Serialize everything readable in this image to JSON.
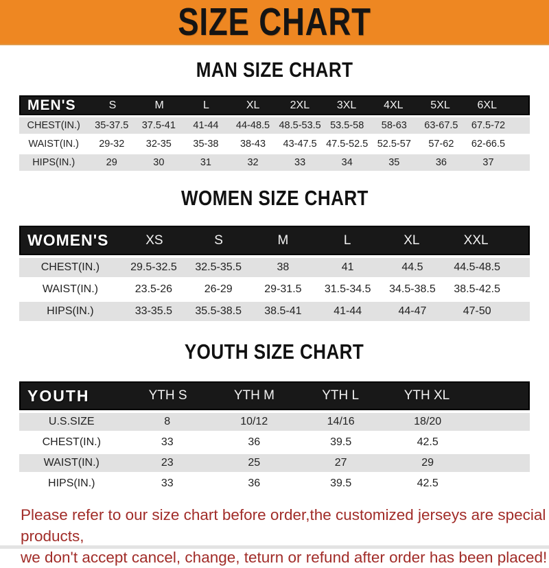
{
  "banner": {
    "title": "SIZE CHART"
  },
  "colors": {
    "orange": "#EE8722",
    "bar_black": "#181818",
    "row_gray": "#E1E1E1",
    "footer_red": "#A12C28"
  },
  "sections": [
    {
      "heading": "MAN SIZE CHART",
      "table": {
        "header_label": "MEN'S",
        "columns": [
          "S",
          "M",
          "L",
          "XL",
          "2XL",
          "3XL",
          "4XL",
          "5XL",
          "6XL"
        ],
        "rows": [
          {
            "label": "CHEST(IN.)",
            "values": [
              "35-37.5",
              "37.5-41",
              "41-44",
              "44-48.5",
              "48.5-53.5",
              "53.5-58",
              "58-63",
              "63-67.5",
              "67.5-72"
            ]
          },
          {
            "label": "WAIST(IN.)",
            "values": [
              "29-32",
              "32-35",
              "35-38",
              "38-43",
              "43-47.5",
              "47.5-52.5",
              "52.5-57",
              "57-62",
              "62-66.5"
            ]
          },
          {
            "label": "HIPS(IN.)",
            "values": [
              "29",
              "30",
              "31",
              "32",
              "33",
              "34",
              "35",
              "36",
              "37"
            ]
          }
        ]
      }
    },
    {
      "heading": "WOMEN SIZE CHART",
      "table": {
        "header_label": "WOMEN'S",
        "columns": [
          "XS",
          "S",
          "M",
          "L",
          "XL",
          "XXL"
        ],
        "rows": [
          {
            "label": "CHEST(IN.)",
            "values": [
              "29.5-32.5",
              "32.5-35.5",
              "38",
              "41",
              "44.5",
              "44.5-48.5"
            ]
          },
          {
            "label": "WAIST(IN.)",
            "values": [
              "23.5-26",
              "26-29",
              "29-31.5",
              "31.5-34.5",
              "34.5-38.5",
              "38.5-42.5"
            ]
          },
          {
            "label": "HIPS(IN.)",
            "values": [
              "33-35.5",
              "35.5-38.5",
              "38.5-41",
              "41-44",
              "44-47",
              "47-50"
            ]
          }
        ]
      }
    },
    {
      "heading": "YOUTH SIZE CHART",
      "table": {
        "header_label": "YOUTH",
        "columns": [
          "YTH S",
          "YTH M",
          "YTH L",
          "YTH XL"
        ],
        "rows": [
          {
            "label": "U.S.SIZE",
            "values": [
              "8",
              "10/12",
              "14/16",
              "18/20"
            ]
          },
          {
            "label": "CHEST(IN.)",
            "values": [
              "33",
              "36",
              "39.5",
              "42.5"
            ]
          },
          {
            "label": "WAIST(IN.)",
            "values": [
              "23",
              "25",
              "27",
              "29"
            ]
          },
          {
            "label": "HIPS(IN.)",
            "values": [
              "33",
              "36",
              "39.5",
              "42.5"
            ]
          }
        ]
      }
    }
  ],
  "footer": {
    "line1": "Please refer to our size chart before order,the customized jerseys are special products,",
    "line2": "we don't accept cancel, change, teturn or refund after order has been placed!"
  }
}
